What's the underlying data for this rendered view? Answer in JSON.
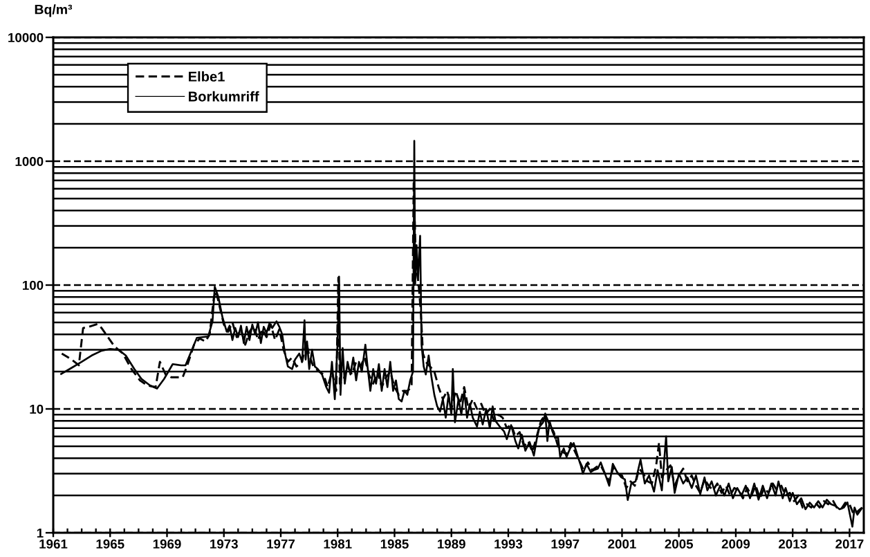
{
  "chart_data": {
    "type": "line",
    "ylabel": "Bq/m³",
    "log": "y",
    "grid": "y",
    "legend": "top left",
    "xlim": [
      1961,
      2018
    ],
    "xticks": [
      1961,
      {
        "value": 1962,
        "label": null
      },
      {
        "value": 1963,
        "label": null
      },
      {
        "value": 1964,
        "label": null
      },
      1965,
      {
        "value": 1966,
        "label": null
      },
      {
        "value": 1967,
        "label": null
      },
      {
        "value": 1968,
        "label": null
      },
      1969,
      {
        "value": 1970,
        "label": null
      },
      {
        "value": 1971,
        "label": null
      },
      {
        "value": 1972,
        "label": null
      },
      1973,
      {
        "value": 1974,
        "label": null
      },
      {
        "value": 1975,
        "label": null
      },
      {
        "value": 1976,
        "label": null
      },
      1977,
      {
        "value": 1978,
        "label": null
      },
      {
        "value": 1979,
        "label": null
      },
      {
        "value": 1980,
        "label": null
      },
      1981,
      {
        "value": 1982,
        "label": null
      },
      {
        "value": 1983,
        "label": null
      },
      {
        "value": 1984,
        "label": null
      },
      1985,
      {
        "value": 1986,
        "label": null
      },
      {
        "value": 1987,
        "label": null
      },
      {
        "value": 1988,
        "label": null
      },
      1989,
      {
        "value": 1990,
        "label": null
      },
      {
        "value": 1991,
        "label": null
      },
      {
        "value": 1992,
        "label": null
      },
      1993,
      {
        "value": 1994,
        "label": null
      },
      {
        "value": 1995,
        "label": null
      },
      {
        "value": 1996,
        "label": null
      },
      1997,
      {
        "value": 1998,
        "label": null
      },
      {
        "value": 1999,
        "label": null
      },
      {
        "value": 2000,
        "label": null
      },
      2001,
      {
        "value": 2002,
        "label": null
      },
      {
        "value": 2003,
        "label": null
      },
      {
        "value": 2004,
        "label": null
      },
      2005,
      {
        "value": 2006,
        "label": null
      },
      {
        "value": 2007,
        "label": null
      },
      {
        "value": 2008,
        "label": null
      },
      2009,
      {
        "value": 2010,
        "label": null
      },
      {
        "value": 2011,
        "label": null
      },
      {
        "value": 2012,
        "label": null
      },
      2013,
      {
        "value": 2014,
        "label": null
      },
      {
        "value": 2015,
        "label": null
      },
      {
        "value": 2016,
        "label": null
      },
      2017
    ],
    "ylim": [
      1,
      10000
    ],
    "yticks": [
      1,
      {
        "value": 2,
        "label": null
      },
      {
        "value": 3,
        "label": null
      },
      {
        "value": 4,
        "label": null
      },
      {
        "value": 5,
        "label": null
      },
      {
        "value": 6,
        "label": null
      },
      {
        "value": 7,
        "label": null
      },
      {
        "value": 8,
        "label": null
      },
      {
        "value": 9,
        "label": null
      },
      10,
      {
        "value": 20,
        "label": null
      },
      {
        "value": 30,
        "label": null
      },
      {
        "value": 40,
        "label": null
      },
      {
        "value": 50,
        "label": null
      },
      {
        "value": 60,
        "label": null
      },
      {
        "value": 70,
        "label": null
      },
      {
        "value": 80,
        "label": null
      },
      {
        "value": 90,
        "label": null
      },
      100,
      {
        "value": 200,
        "label": null
      },
      {
        "value": 300,
        "label": null
      },
      {
        "value": 400,
        "label": null
      },
      {
        "value": 500,
        "label": null
      },
      {
        "value": 600,
        "label": null
      },
      {
        "value": 700,
        "label": null
      },
      {
        "value": 800,
        "label": null
      },
      {
        "value": 900,
        "label": null
      },
      1000,
      {
        "value": 2000,
        "label": null
      },
      {
        "value": 3000,
        "label": null
      },
      {
        "value": 4000,
        "label": null
      },
      {
        "value": 5000,
        "label": null
      },
      {
        "value": 6000,
        "label": null
      },
      {
        "value": 7000,
        "label": null
      },
      {
        "value": 8000,
        "label": null
      },
      {
        "value": 9000,
        "label": null
      },
      10000
    ],
    "series": [
      {
        "name": "Elbe1",
        "color": "#000000",
        "line_style": "dashed",
        "x": [
          1961.6,
          1962.3,
          1962.8,
          1963.1,
          1963.5,
          1964.1,
          1964.4,
          1965.3,
          1965.9,
          1966.5,
          1967.1,
          1967.6,
          1968.2,
          1968.5,
          1968.9,
          1969.3,
          1970.1,
          1970.4,
          1970.9,
          1971.3,
          1971.7,
          1972.0,
          1972.3,
          1972.45,
          1972.6,
          1972.8,
          1973.0,
          1973.3,
          1973.6,
          1973.9,
          1974.2,
          1974.5,
          1974.8,
          1975.1,
          1975.4,
          1975.7,
          1976.0,
          1976.3,
          1976.6,
          1976.9,
          1977.2,
          1977.5,
          1977.8,
          1978.1,
          1978.5,
          1978.8,
          1979.0,
          1979.3,
          1979.7,
          1980.0,
          1980.3,
          1980.6,
          1980.9,
          1981.05,
          1981.15,
          1981.4,
          1981.7,
          1982.0,
          1982.3,
          1982.6,
          1982.9,
          1983.2,
          1983.5,
          1983.8,
          1984.1,
          1984.4,
          1984.7,
          1985.0,
          1985.3,
          1985.6,
          1985.9,
          1986.2,
          1986.35,
          1986.5,
          1986.7,
          1986.85,
          1987.0,
          1987.2,
          1987.5,
          1987.8,
          1988.1,
          1988.4,
          1988.7,
          1989.0,
          1989.3,
          1989.6,
          1989.9,
          1990.2,
          1990.5,
          1990.8,
          1991.1,
          1991.4,
          1991.7,
          1992.0,
          1992.3,
          1992.6,
          1992.9,
          1993.2,
          1993.5,
          1993.8,
          1994.1,
          1994.4,
          1994.7,
          1995.0,
          1995.3,
          1995.6,
          1995.9,
          1996.2,
          1996.5,
          1996.8,
          1997.1,
          1997.4,
          1997.7,
          1998.0,
          1998.3,
          1998.6,
          1998.9,
          1999.2,
          1999.5,
          1999.8,
          2000.1,
          2000.4,
          2000.7,
          2001.0,
          2001.3,
          2001.6,
          2001.9,
          2002.2,
          2002.5,
          2002.8,
          2003.1,
          2003.4,
          2003.6,
          2003.8,
          2004.1,
          2004.4,
          2004.7,
          2005.0,
          2005.3,
          2005.6,
          2005.9,
          2006.2,
          2006.5,
          2006.8,
          2007.1,
          2007.4,
          2007.7,
          2008.0,
          2008.3,
          2008.6,
          2008.9,
          2009.2,
          2009.5,
          2009.8,
          2010.1,
          2010.4,
          2010.7,
          2011.0,
          2011.3,
          2011.6,
          2011.9,
          2012.2,
          2012.5,
          2012.8,
          2013.1,
          2013.4,
          2013.7,
          2014.0,
          2014.3,
          2014.6,
          2014.9,
          2015.2,
          2015.5,
          2015.8,
          2016.1,
          2016.4,
          2016.7,
          2017.0,
          2017.3,
          2017.6,
          2017.9
        ],
        "values": [
          28,
          25,
          22.5,
          45,
          46,
          48.5,
          45,
          32,
          28,
          21,
          17,
          15.5,
          15,
          24,
          19,
          18,
          18,
          22,
          33,
          37,
          35,
          40,
          80,
          90,
          75,
          60,
          48,
          42,
          50,
          38,
          44,
          33,
          42,
          47,
          36,
          44,
          38,
          48,
          36,
          44,
          30,
          24,
          26,
          22,
          24,
          35,
          27,
          22,
          20,
          19,
          15,
          20,
          14,
          115,
          16,
          17,
          22,
          19,
          24,
          22,
          26,
          19,
          16,
          20,
          15,
          18,
          20,
          15,
          13,
          14,
          14,
          15,
          700,
          150,
          100,
          60,
          28,
          24,
          22,
          20,
          15,
          12,
          14,
          10,
          14,
          11,
          15,
          10,
          12,
          10,
          11,
          9,
          10,
          8,
          9,
          8.5,
          7,
          7.5,
          6,
          6.5,
          5,
          5.5,
          4.5,
          6,
          8,
          9,
          7.5,
          6.5,
          5,
          4.5,
          4.3,
          5.3,
          4.5,
          3.8,
          3.2,
          3.7,
          3.2,
          3.4,
          3.5,
          3,
          2.6,
          3.4,
          3,
          2.9,
          2.3,
          2.6,
          2.4,
          3.3,
          3,
          2.6,
          2.5,
          3.5,
          5.3,
          2.8,
          3.2,
          3.5,
          2.4,
          2.9,
          3.3,
          2.6,
          2.9,
          2.4,
          2.1,
          2.7,
          2.4,
          2.2,
          2.5,
          2.1,
          2.4,
          2,
          2.3,
          2.2,
          1.9,
          2.3,
          2,
          2.4,
          1.9,
          2.3,
          2.1,
          2.5,
          2.2,
          2.4,
          2,
          2.1,
          1.8,
          2,
          1.6,
          1.7,
          1.6,
          1.75,
          1.6,
          1.8,
          1.7,
          1.85,
          1.6,
          1.55,
          1.75,
          1.7,
          1.4,
          1.5,
          1.6
        ]
      },
      {
        "name": "Borkumriff",
        "color": "#000000",
        "line_style": "solid",
        "x": [
          1961.5,
          1962.3,
          1963.0,
          1963.7,
          1964.4,
          1965.0,
          1965.6,
          1966.1,
          1966.7,
          1967.2,
          1967.8,
          1968.3,
          1968.8,
          1969.4,
          1970.0,
          1970.3,
          1970.7,
          1971.1,
          1971.9,
          1972.2,
          1972.36,
          1972.6,
          1972.9,
          1973.2,
          1973.4,
          1973.6,
          1973.8,
          1974.0,
          1974.2,
          1974.4,
          1974.6,
          1974.8,
          1975.0,
          1975.2,
          1975.4,
          1975.6,
          1975.8,
          1976.0,
          1976.2,
          1976.4,
          1976.7,
          1976.9,
          1977.1,
          1977.3,
          1977.5,
          1977.8,
          1978.0,
          1978.3,
          1978.5,
          1978.67,
          1978.75,
          1978.85,
          1979.0,
          1979.2,
          1979.4,
          1979.6,
          1979.9,
          1980.2,
          1980.4,
          1980.6,
          1980.8,
          1981.0,
          1981.1,
          1981.2,
          1981.35,
          1981.5,
          1981.7,
          1981.9,
          1982.1,
          1982.3,
          1982.5,
          1982.7,
          1982.95,
          1983.1,
          1983.3,
          1983.5,
          1983.7,
          1983.9,
          1984.1,
          1984.3,
          1984.5,
          1984.7,
          1984.9,
          1985.1,
          1985.3,
          1985.5,
          1985.7,
          1985.9,
          1986.1,
          1986.3,
          1986.39,
          1986.45,
          1986.55,
          1986.65,
          1986.8,
          1986.9,
          1987.05,
          1987.2,
          1987.4,
          1987.6,
          1987.8,
          1988.0,
          1988.2,
          1988.4,
          1988.6,
          1988.8,
          1989.0,
          1989.1,
          1989.25,
          1989.5,
          1989.7,
          1989.9,
          1990.1,
          1990.3,
          1990.5,
          1990.8,
          1991.0,
          1991.2,
          1991.45,
          1991.7,
          1991.9,
          1992.1,
          1992.4,
          1992.7,
          1992.9,
          1993.2,
          1993.5,
          1993.7,
          1993.95,
          1994.2,
          1994.5,
          1994.8,
          1995.0,
          1995.2,
          1995.45,
          1995.6,
          1995.75,
          1995.9,
          1996.1,
          1996.3,
          1996.5,
          1996.65,
          1996.9,
          1997.1,
          1997.35,
          1997.6,
          1997.9,
          1998.1,
          1998.25,
          1998.5,
          1998.8,
          1999.0,
          1999.3,
          1999.5,
          1999.8,
          2000.1,
          2000.35,
          2000.65,
          2000.95,
          2001.2,
          2001.4,
          2001.65,
          2001.95,
          2002.3,
          2002.6,
          2002.9,
          2003.25,
          2003.5,
          2003.8,
          2004.1,
          2004.25,
          2004.5,
          2004.7,
          2005.0,
          2005.3,
          2005.6,
          2005.9,
          2006.2,
          2006.5,
          2006.8,
          2007.0,
          2007.3,
          2007.6,
          2007.9,
          2008.2,
          2008.5,
          2008.8,
          2009.1,
          2009.4,
          2009.7,
          2010.0,
          2010.3,
          2010.6,
          2010.9,
          2011.2,
          2011.5,
          2011.8,
          2012.0,
          2012.3,
          2012.5,
          2012.8,
          2013.0,
          2013.3,
          2013.6,
          2013.9,
          2014.2,
          2014.5,
          2014.8,
          2015.1,
          2015.4,
          2015.7,
          2016.0,
          2016.3,
          2016.6,
          2016.85,
          2017.2,
          2017.35,
          2017.55,
          2017.9
        ],
        "values": [
          19,
          21.5,
          24,
          27,
          29.5,
          30.5,
          30,
          27,
          21,
          17.5,
          15.5,
          14.6,
          17.5,
          23,
          22.5,
          22.5,
          29,
          37.5,
          38.5,
          51,
          97,
          81,
          55,
          42,
          47,
          36,
          45,
          38,
          47,
          34,
          46,
          36,
          48,
          40,
          50,
          34,
          46,
          41,
          49,
          45,
          51,
          46,
          40,
          28,
          22,
          21,
          25,
          28,
          24,
          52,
          25,
          35,
          21,
          30,
          22,
          21,
          19,
          15,
          13.5,
          24,
          12,
          35,
          117,
          13,
          31,
          16,
          24,
          19,
          26,
          17,
          24,
          20,
          33,
          22,
          14,
          21,
          16,
          23,
          14,
          21,
          15,
          24,
          14,
          17,
          12,
          11.5,
          14,
          13,
          17,
          20,
          1460,
          100,
          210,
          110,
          250,
          33,
          22,
          19,
          27,
          18,
          13,
          10.5,
          9.5,
          12,
          8.5,
          13,
          9,
          21,
          7.8,
          12,
          9,
          14,
          8.5,
          11,
          8.5,
          7.2,
          9.5,
          7.5,
          10,
          7,
          10.5,
          8,
          7.2,
          6.6,
          5.7,
          7.4,
          5.5,
          4.8,
          6.2,
          4.6,
          5.4,
          4.2,
          5.7,
          7.2,
          7.8,
          9.2,
          5.5,
          8,
          6.6,
          5.8,
          5.9,
          4.1,
          4.8,
          4.1,
          4.8,
          5.3,
          4.1,
          3.5,
          3,
          3.6,
          3.1,
          3.2,
          3.3,
          3.7,
          3,
          2.4,
          3.6,
          3.1,
          2.8,
          2.7,
          1.84,
          2.5,
          2.6,
          3.9,
          2.5,
          2.9,
          2.15,
          3.2,
          2.2,
          6,
          2.6,
          3.4,
          2.1,
          3,
          2.5,
          2.8,
          2.3,
          2.9,
          2.05,
          2.8,
          2.2,
          2.6,
          2,
          2.4,
          2,
          2.5,
          1.9,
          2.3,
          2,
          2.4,
          1.9,
          2.5,
          1.85,
          2.4,
          1.9,
          2.5,
          2,
          2.6,
          1.9,
          2.3,
          1.8,
          2.1,
          1.7,
          1.9,
          1.55,
          1.75,
          1.6,
          1.8,
          1.6,
          1.85,
          1.7,
          1.65,
          1.55,
          1.6,
          1.76,
          1.12,
          1.6,
          1.4,
          1.6
        ]
      }
    ]
  }
}
